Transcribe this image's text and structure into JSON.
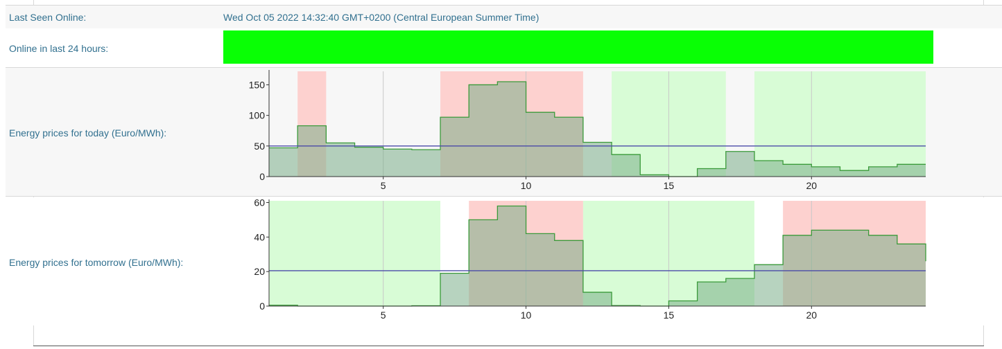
{
  "last_seen": {
    "label": "Last Seen Online:",
    "value": "Wed Oct 05 2022 14:32:40 GMT+0200 (Central European Summer Time)"
  },
  "online": {
    "label": "Online in last 24 hours:",
    "bar_color": "#09ff05",
    "online_fraction": 1.0
  },
  "colors": {
    "text": "#31708f",
    "step_line": "#3a9a3a",
    "step_fill": "#7cae8a",
    "avg_line": "#4a4aa8",
    "cheap_band": "#d8fcd6",
    "expensive_band": "#fdd1cf"
  },
  "today": {
    "label": "Energy prices for today (Euro/MWh):"
  },
  "tomorrow": {
    "label": "Energy prices for tomorrow (Euro/MWh):"
  },
  "chart_data": [
    {
      "type": "area",
      "step": true,
      "title": "",
      "x_ticks": [
        5,
        10,
        15,
        20
      ],
      "y_ticks": [
        0,
        50,
        100,
        150
      ],
      "xlim": [
        1,
        24
      ],
      "ylim": [
        0,
        172
      ],
      "grid": true,
      "x": [
        1,
        2,
        3,
        4,
        5,
        6,
        7,
        8,
        9,
        10,
        11,
        12,
        13,
        14,
        15,
        16,
        17,
        18,
        19,
        20,
        21,
        22,
        23,
        24
      ],
      "values": [
        47,
        83,
        55,
        48,
        45,
        44,
        97,
        150,
        155,
        105,
        97,
        56,
        36,
        3,
        0,
        13,
        41,
        26,
        20,
        16,
        10,
        16,
        20,
        20
      ],
      "average": 50,
      "bands": [
        {
          "kind": "expensive",
          "from": 2,
          "to": 3
        },
        {
          "kind": "expensive",
          "from": 7,
          "to": 12
        },
        {
          "kind": "cheap",
          "from": 13,
          "to": 17
        },
        {
          "kind": "cheap",
          "from": 18,
          "to": 24
        }
      ]
    },
    {
      "type": "area",
      "step": true,
      "title": "",
      "x_ticks": [
        5,
        10,
        15,
        20
      ],
      "y_ticks": [
        0,
        20,
        40,
        60
      ],
      "xlim": [
        1,
        24
      ],
      "ylim": [
        0,
        61
      ],
      "grid": true,
      "x": [
        1,
        2,
        3,
        4,
        5,
        6,
        7,
        8,
        9,
        10,
        11,
        12,
        13,
        14,
        15,
        16,
        17,
        18,
        19,
        20,
        21,
        22,
        23,
        24
      ],
      "values": [
        0.5,
        0,
        0,
        0,
        0,
        0.2,
        19,
        50,
        58,
        42,
        38,
        8,
        0.3,
        0,
        3,
        14,
        16,
        24,
        41,
        44,
        44,
        41,
        36,
        26
      ],
      "average": 20.5,
      "bands": [
        {
          "kind": "cheap",
          "from": 1,
          "to": 7
        },
        {
          "kind": "expensive",
          "from": 8,
          "to": 12
        },
        {
          "kind": "cheap",
          "from": 12,
          "to": 18
        },
        {
          "kind": "expensive",
          "from": 19,
          "to": 24
        }
      ]
    }
  ]
}
